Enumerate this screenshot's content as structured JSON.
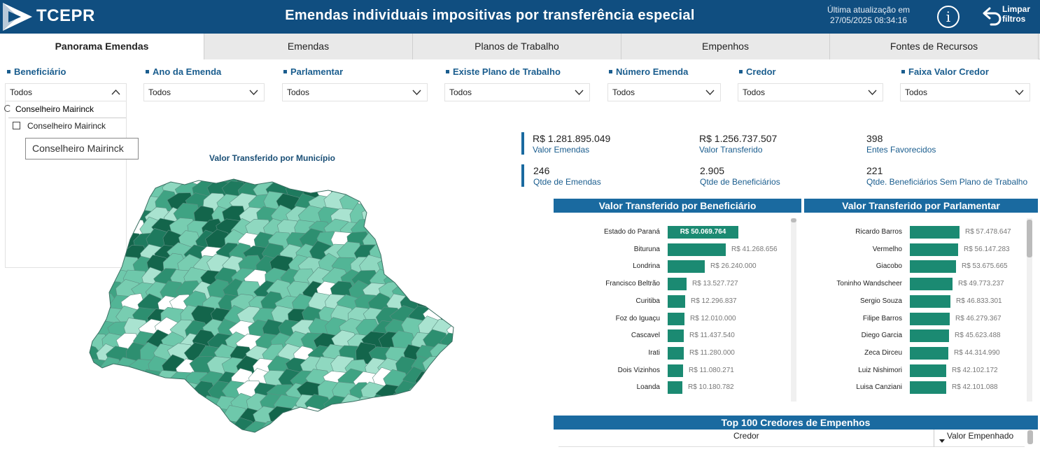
{
  "header": {
    "logo_text": "TCEPR",
    "title": "Emendas individuais impositivas por transferência especial",
    "update_line1": "Última atualização em",
    "update_line2": "27/05/2025 08:34:16",
    "info_icon": "info-icon",
    "reset_icon": "undo-arrow-icon",
    "reset_line1": "Limpar",
    "reset_line2": "filtros",
    "bg_color": "#104e80"
  },
  "tabs": [
    {
      "label": "Panorama Emendas",
      "active": true
    },
    {
      "label": "Emendas"
    },
    {
      "label": "Planos de Trabalho"
    },
    {
      "label": "Empenhos"
    },
    {
      "label": "Fontes de Recursos"
    }
  ],
  "filters": [
    {
      "label": "Beneficiário",
      "value": "Todos",
      "open": true
    },
    {
      "label": "Ano da Emenda",
      "value": "Todos"
    },
    {
      "label": "Parlamentar",
      "value": "Todos"
    },
    {
      "label": "Existe Plano de Trabalho",
      "value": "Todos"
    },
    {
      "label": "Número Emenda",
      "value": "Todos"
    },
    {
      "label": "Credor",
      "value": "Todos"
    },
    {
      "label": "Faixa Valor Credor",
      "value": "Todos"
    }
  ],
  "beneficiario_dropdown": {
    "search_text": "Conselheiro Mairinck",
    "option": "Conselheiro Mairinck",
    "tooltip": "Conselheiro Mairinck"
  },
  "map": {
    "title": "Valor Transferido por Município"
  },
  "kpis": [
    {
      "value": "R$ 1.281.895.049",
      "label": "Valor Emendas"
    },
    {
      "value": "R$ 1.256.737.507",
      "label": "Valor Transferido"
    },
    {
      "value": "398",
      "label": "Entes Favorecidos"
    },
    {
      "value": "246",
      "label": "Qtde de Emendas"
    },
    {
      "value": "2.905",
      "label": "Qtde de Beneficiários"
    },
    {
      "value": "221",
      "label": "Qtde. Beneficiários Sem Plano de Trabalho"
    }
  ],
  "chart_data": [
    {
      "type": "bar",
      "orientation": "horizontal",
      "title": "Valor Transferido por Beneficiário",
      "categories": [
        "Estado do Paraná",
        "Bituruna",
        "Londrina",
        "Francisco Beltrão",
        "Curitiba",
        "Foz do Iguaçu",
        "Cascavel",
        "Irati",
        "Dois Vizinhos",
        "Loanda"
      ],
      "values": [
        50069764,
        41268656,
        26240000,
        13527727,
        12296837,
        12010000,
        11437540,
        11280000,
        11080271,
        10180782
      ],
      "labels": [
        "R$ 50.069.764",
        "R$ 41.268.656",
        "R$ 26.240.000",
        "R$ 13.527.727",
        "R$ 12.296.837",
        "R$ 12.010.000",
        "R$ 11.437.540",
        "R$ 11.280.000",
        "R$ 11.080.271",
        "R$ 10.180.782"
      ],
      "bar_color": "#1b8a72"
    },
    {
      "type": "bar",
      "orientation": "horizontal",
      "title": "Valor Transferido por Parlamentar",
      "categories": [
        "Ricardo Barros",
        "Vermelho",
        "Giacobo",
        "Toninho Wandscheer",
        "Sergio Souza",
        "Filipe Barros",
        "Diego Garcia",
        "Zeca Dirceu",
        "Luiz Nishimori",
        "Luisa Canziani"
      ],
      "values": [
        57478647,
        56147283,
        53675665,
        49773237,
        46833301,
        46279367,
        45623488,
        44314990,
        42102172,
        42101088
      ],
      "labels": [
        "R$ 57.478.647",
        "R$ 56.147.283",
        "R$ 53.675.665",
        "R$ 49.773.237",
        "R$ 46.833.301",
        "R$ 46.279.367",
        "R$ 45.623.488",
        "R$ 44.314.990",
        "R$ 42.102.172",
        "R$ 42.101.088"
      ],
      "bar_color": "#1b8a72"
    }
  ],
  "top100": {
    "title": "Top 100 Credores de Empenhos",
    "col_credor": "Credor",
    "col_valor": "Valor Empenhado"
  }
}
